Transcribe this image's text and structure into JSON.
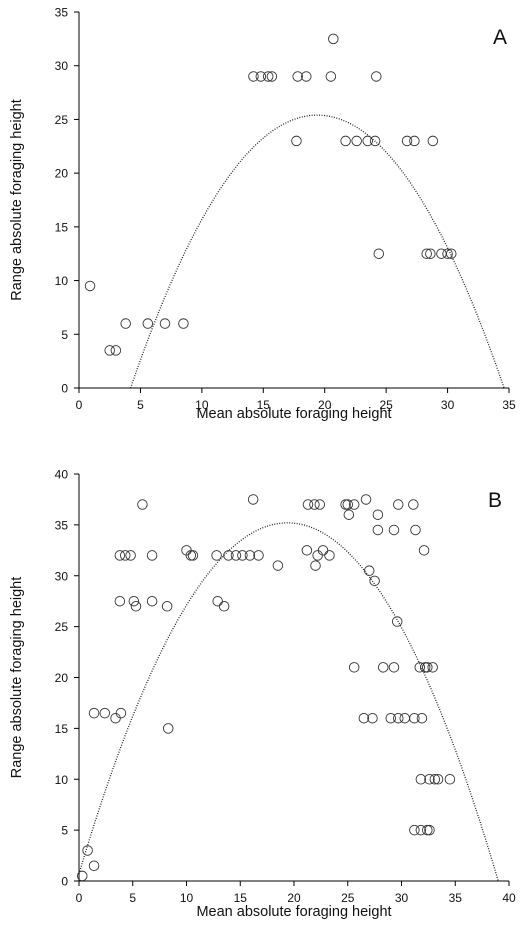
{
  "chart_data": [
    {
      "type": "scatter",
      "panel_label": "A",
      "xlabel": "Mean absolute foraging height",
      "ylabel": "Range absolute foraging height",
      "xlim": [
        0,
        35
      ],
      "ylim": [
        0,
        35
      ],
      "xticks": [
        0,
        5,
        10,
        15,
        20,
        25,
        30,
        35
      ],
      "yticks": [
        0,
        5,
        10,
        15,
        20,
        25,
        30,
        35
      ],
      "grid": false,
      "legend": "none",
      "series": [
        {
          "points": [
            [
              0.9,
              9.5
            ],
            [
              2.5,
              3.5
            ],
            [
              3.0,
              3.5
            ],
            [
              3.8,
              6.0
            ],
            [
              5.6,
              6.0
            ],
            [
              7.0,
              6.0
            ],
            [
              8.5,
              6.0
            ],
            [
              14.2,
              29.0
            ],
            [
              14.8,
              29.0
            ],
            [
              15.4,
              29.0
            ],
            [
              15.7,
              29.0
            ],
            [
              17.8,
              29.0
            ],
            [
              18.5,
              29.0
            ],
            [
              20.5,
              29.0
            ],
            [
              20.7,
              32.5
            ],
            [
              24.2,
              29.0
            ],
            [
              17.7,
              23.0
            ],
            [
              21.7,
              23.0
            ],
            [
              22.6,
              23.0
            ],
            [
              23.5,
              23.0
            ],
            [
              24.1,
              23.0
            ],
            [
              26.7,
              23.0
            ],
            [
              27.3,
              23.0
            ],
            [
              28.8,
              23.0
            ],
            [
              24.4,
              12.5
            ],
            [
              28.3,
              12.5
            ],
            [
              28.6,
              12.5
            ],
            [
              29.5,
              12.5
            ],
            [
              30.0,
              12.5
            ],
            [
              30.3,
              12.5
            ]
          ]
        }
      ],
      "fit_curve": {
        "kind": "quadratic",
        "vertex_x": 19.4,
        "vertex_y": 25.4,
        "x_range": [
          4.2,
          34.6
        ]
      }
    },
    {
      "type": "scatter",
      "panel_label": "B",
      "xlabel": "Mean absolute foraging height",
      "ylabel": "Range absolute foraging height",
      "xlim": [
        0,
        40
      ],
      "ylim": [
        0,
        40
      ],
      "xticks": [
        0,
        5,
        10,
        15,
        20,
        25,
        30,
        35,
        40
      ],
      "yticks": [
        0,
        5,
        10,
        15,
        20,
        25,
        30,
        35,
        40
      ],
      "grid": false,
      "legend": "none",
      "series": [
        {
          "points": [
            [
              0.3,
              0.5
            ],
            [
              0.8,
              3.0
            ],
            [
              1.4,
              1.5
            ],
            [
              1.4,
              16.5
            ],
            [
              2.4,
              16.5
            ],
            [
              3.4,
              16.0
            ],
            [
              3.9,
              16.5
            ],
            [
              3.8,
              27.5
            ],
            [
              5.1,
              27.5
            ],
            [
              5.3,
              27.0
            ],
            [
              6.8,
              27.5
            ],
            [
              8.2,
              27.0
            ],
            [
              8.3,
              15.0
            ],
            [
              3.8,
              32.0
            ],
            [
              4.3,
              32.0
            ],
            [
              4.8,
              32.0
            ],
            [
              6.8,
              32.0
            ],
            [
              5.9,
              37.0
            ],
            [
              10.0,
              32.5
            ],
            [
              10.4,
              32.0
            ],
            [
              10.6,
              32.0
            ],
            [
              12.8,
              32.0
            ],
            [
              13.9,
              32.0
            ],
            [
              14.6,
              32.0
            ],
            [
              15.2,
              32.0
            ],
            [
              15.9,
              32.0
            ],
            [
              16.7,
              32.0
            ],
            [
              16.2,
              37.5
            ],
            [
              12.9,
              27.5
            ],
            [
              13.5,
              27.0
            ],
            [
              18.5,
              31.0
            ],
            [
              21.3,
              37.0
            ],
            [
              21.9,
              37.0
            ],
            [
              22.4,
              37.0
            ],
            [
              21.2,
              32.5
            ],
            [
              22.2,
              32.0
            ],
            [
              22.0,
              31.0
            ],
            [
              22.7,
              32.5
            ],
            [
              23.3,
              32.0
            ],
            [
              24.8,
              37.0
            ],
            [
              25.0,
              37.0
            ],
            [
              25.6,
              37.0
            ],
            [
              25.1,
              36.0
            ],
            [
              26.7,
              37.5
            ],
            [
              27.8,
              36.0
            ],
            [
              27.8,
              34.5
            ],
            [
              29.3,
              34.5
            ],
            [
              29.7,
              37.0
            ],
            [
              31.1,
              37.0
            ],
            [
              31.3,
              34.5
            ],
            [
              32.1,
              32.5
            ],
            [
              27.0,
              30.5
            ],
            [
              27.5,
              29.5
            ],
            [
              29.6,
              25.5
            ],
            [
              25.6,
              21.0
            ],
            [
              28.3,
              21.0
            ],
            [
              29.3,
              21.0
            ],
            [
              31.7,
              21.0
            ],
            [
              32.2,
              21.0
            ],
            [
              32.4,
              21.0
            ],
            [
              32.9,
              21.0
            ],
            [
              26.5,
              16.0
            ],
            [
              27.3,
              16.0
            ],
            [
              29.0,
              16.0
            ],
            [
              29.7,
              16.0
            ],
            [
              30.3,
              16.0
            ],
            [
              31.2,
              16.0
            ],
            [
              31.9,
              16.0
            ],
            [
              31.8,
              10.0
            ],
            [
              32.6,
              10.0
            ],
            [
              33.1,
              10.0
            ],
            [
              33.4,
              10.0
            ],
            [
              34.5,
              10.0
            ],
            [
              31.2,
              5.0
            ],
            [
              31.8,
              5.0
            ],
            [
              32.4,
              5.0
            ],
            [
              32.6,
              5.0
            ]
          ]
        }
      ],
      "fit_curve": {
        "kind": "quadratic",
        "vertex_x": 19.4,
        "vertex_y": 35.2,
        "x_range": [
          0,
          39.0
        ]
      }
    }
  ]
}
